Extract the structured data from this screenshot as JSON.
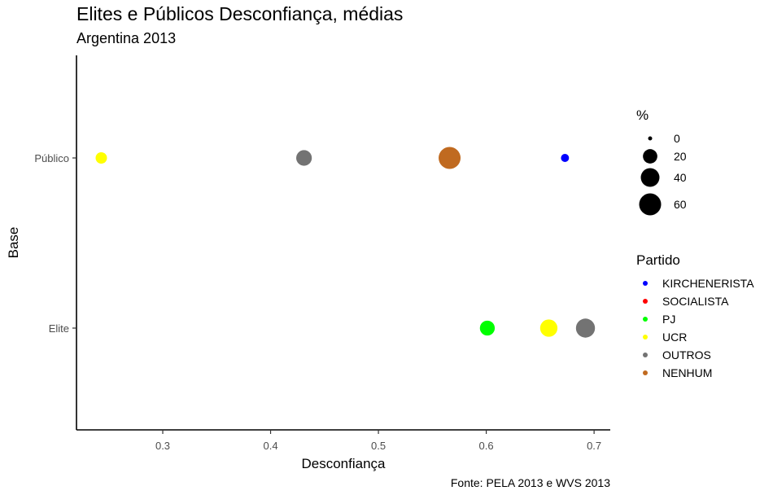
{
  "chart_data": {
    "type": "scatter",
    "title": "Elites e Públicos Desconfiança, médias",
    "subtitle": "Argentina 2013",
    "xlabel": "Desconfiança",
    "ylabel": "Base",
    "caption": "Fonte: PELA 2013 e WVS 2013",
    "xlim": [
      0.22,
      0.715
    ],
    "x_ticks": [
      0.3,
      0.4,
      0.5,
      0.6,
      0.7
    ],
    "x_tick_labels": [
      "0.3",
      "0.4",
      "0.5",
      "0.6",
      "0.7"
    ],
    "categories": [
      "Elite",
      "Público"
    ],
    "grid": false,
    "legend_position": "right",
    "size_legend": {
      "title": "%",
      "values": [
        0,
        20,
        40,
        60
      ],
      "labels": [
        "0",
        "20",
        "40",
        "60"
      ]
    },
    "color_legend": {
      "title": "Partido",
      "items": [
        {
          "label": "KIRCHENERISTA",
          "color": "#0000ff"
        },
        {
          "label": "SOCIALISTA",
          "color": "#ff0000"
        },
        {
          "label": "PJ",
          "color": "#00ff00"
        },
        {
          "label": "UCR",
          "color": "#ffff00"
        },
        {
          "label": "OUTROS",
          "color": "#737373"
        },
        {
          "label": "NENHUM",
          "color": "#c06a20"
        }
      ]
    },
    "points": [
      {
        "base": "Público",
        "partido": "UCR",
        "x": 0.243,
        "size": 10
      },
      {
        "base": "Público",
        "partido": "OUTROS",
        "x": 0.431,
        "size": 25
      },
      {
        "base": "Público",
        "partido": "NENHUM",
        "x": 0.566,
        "size": 60
      },
      {
        "base": "Público",
        "partido": "KIRCHENERISTA",
        "x": 0.673,
        "size": 3
      },
      {
        "base": "Elite",
        "partido": "PJ",
        "x": 0.601,
        "size": 22
      },
      {
        "base": "Elite",
        "partido": "UCR",
        "x": 0.658,
        "size": 33
      },
      {
        "base": "Elite",
        "partido": "OUTROS",
        "x": 0.692,
        "size": 42
      }
    ]
  }
}
